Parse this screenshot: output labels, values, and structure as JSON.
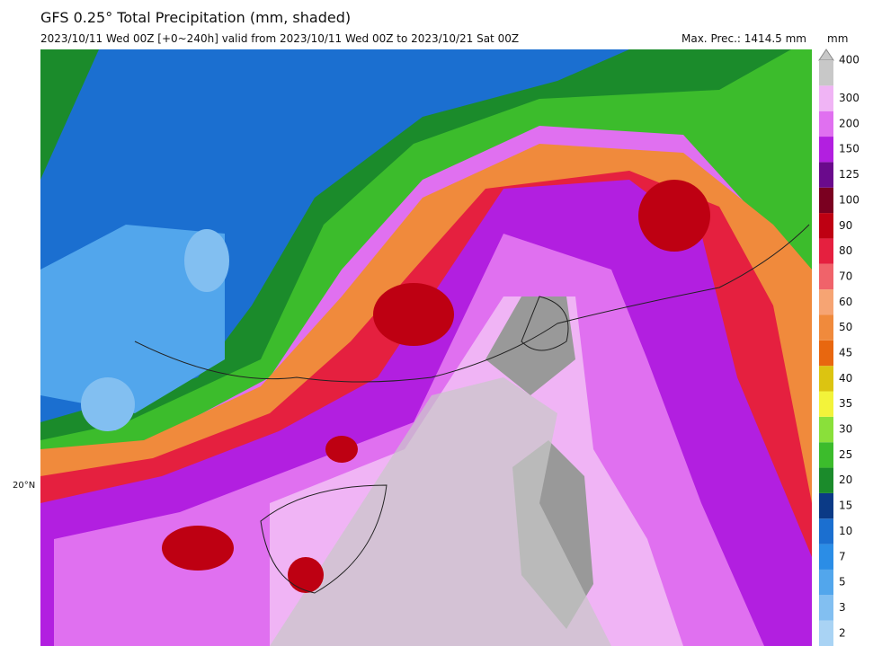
{
  "header": {
    "title": "GFS 0.25° Total Precipitation (mm, shaded)",
    "subtitle": "2023/10/11 Wed 00Z [+0~240h] valid from 2023/10/11 Wed 00Z to 2023/10/21 Sat 00Z",
    "max_prec": "Max. Prec.: 1414.5 mm"
  },
  "map": {
    "lat_label": "20°N"
  },
  "colorbar": {
    "unit": "mm",
    "levels": [
      {
        "label": "2",
        "color": "#a9d3f4"
      },
      {
        "label": "3",
        "color": "#82bff1"
      },
      {
        "label": "5",
        "color": "#52a6ec"
      },
      {
        "label": "7",
        "color": "#2b8de6"
      },
      {
        "label": "10",
        "color": "#1b6fd0"
      },
      {
        "label": "15",
        "color": "#0b3a86"
      },
      {
        "label": "20",
        "color": "#1b8b2b"
      },
      {
        "label": "25",
        "color": "#3cbc2c"
      },
      {
        "label": "30",
        "color": "#8ae03a"
      },
      {
        "label": "35",
        "color": "#f3f33a"
      },
      {
        "label": "40",
        "color": "#dcc411"
      },
      {
        "label": "45",
        "color": "#e8670f"
      },
      {
        "label": "50",
        "color": "#f08a3c"
      },
      {
        "label": "60",
        "color": "#f6a473"
      },
      {
        "label": "70",
        "color": "#f0636a"
      },
      {
        "label": "80",
        "color": "#e5203f"
      },
      {
        "label": "90",
        "color": "#be0012"
      },
      {
        "label": "100",
        "color": "#7a0020"
      },
      {
        "label": "125",
        "color": "#6a0a8c"
      },
      {
        "label": "150",
        "color": "#b21fe0"
      },
      {
        "label": "200",
        "color": "#e070f0"
      },
      {
        "label": "300",
        "color": "#f0b4f5"
      },
      {
        "label": "400",
        "color": "#c8c8c8"
      }
    ]
  }
}
